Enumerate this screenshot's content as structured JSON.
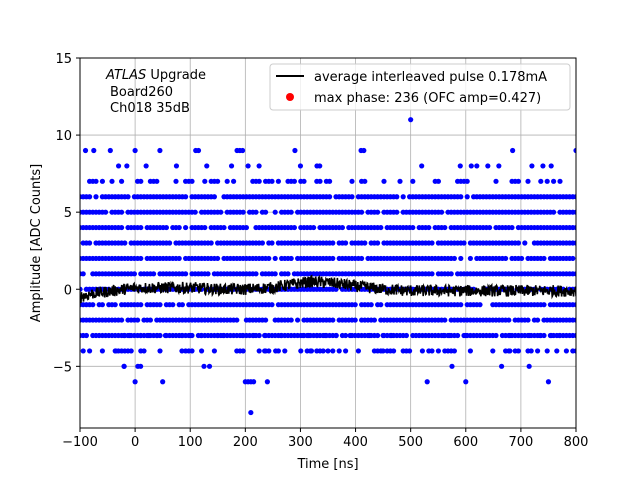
{
  "chart_data": {
    "type": "scatter",
    "xlabel": "Time [ns]",
    "ylabel": "Amplitude [ADC Counts]",
    "xlim": [
      -100,
      800
    ],
    "ylim": [
      -9,
      15
    ],
    "xticks": [
      -100,
      0,
      100,
      200,
      300,
      400,
      500,
      600,
      700,
      800
    ],
    "yticks": [
      -5,
      0,
      5,
      10,
      15
    ],
    "grid": true,
    "legend_position": "top-right",
    "annotation": {
      "line1_italic": "ATLAS",
      "line1_rest": " Upgrade",
      "line2": "Board260",
      "line3": "Ch018 35dB"
    },
    "series": [
      {
        "name": "average interleaved pulse 0.178mA",
        "kind": "line",
        "color": "#000000",
        "x": [
          -100,
          -90,
          -80,
          -60,
          -40,
          -20,
          0,
          50,
          100,
          150,
          200,
          250,
          280,
          300,
          320,
          340,
          360,
          380,
          400,
          450,
          500,
          550,
          600,
          650,
          700,
          750,
          800
        ],
        "y": [
          -0.5,
          -0.4,
          -0.3,
          -0.2,
          -0.1,
          0.0,
          0.1,
          0.1,
          0.1,
          0.0,
          0.0,
          0.1,
          0.3,
          0.4,
          0.5,
          0.45,
          0.4,
          0.3,
          0.2,
          0.0,
          -0.1,
          -0.1,
          -0.1,
          -0.1,
          -0.1,
          -0.1,
          -0.1
        ]
      },
      {
        "name": "max phase: 236 (OFC amp=0.427)",
        "kind": "marker",
        "color": "#ff0000",
        "x": [],
        "y": []
      },
      {
        "name": "",
        "kind": "samples",
        "color": "#0000ff",
        "dense_levels": [
          -3,
          -2,
          -1,
          0,
          1,
          2,
          3,
          4,
          5,
          6
        ],
        "medium_levels": [
          -4,
          7
        ],
        "x": [
          -90,
          -75,
          -45,
          -30,
          -15,
          0,
          20,
          45,
          75,
          110,
          115,
          130,
          175,
          185,
          190,
          195,
          205,
          225,
          290,
          300,
          330,
          335,
          410,
          415,
          500,
          520,
          590,
          610,
          620,
          640,
          660,
          685,
          720,
          740,
          755,
          800,
          -20,
          -10,
          10,
          25,
          40,
          55,
          85,
          100,
          120,
          150,
          160,
          195,
          215,
          235,
          265,
          305,
          315,
          330,
          345,
          365,
          390,
          425,
          450,
          465,
          560,
          570,
          600,
          680,
          715,
          735,
          755,
          770,
          -20,
          -35,
          0,
          5,
          10,
          50,
          85,
          125,
          135,
          235,
          255,
          320,
          350,
          450,
          530,
          575,
          600,
          665,
          680,
          715,
          750,
          -20,
          200,
          205,
          210,
          215,
          240,
          210
        ],
        "y": [
          9,
          9,
          9,
          8,
          8,
          9,
          8,
          9,
          8,
          9,
          9,
          8,
          8,
          9,
          9,
          9,
          8,
          8,
          9,
          8,
          8,
          8,
          9,
          9,
          11,
          8,
          8,
          8,
          8,
          8,
          8,
          9,
          8,
          8,
          8,
          9,
          -3,
          -3,
          -3,
          -3,
          -3,
          -3,
          -3,
          -3,
          -3,
          -3,
          -3,
          -3,
          -3,
          -3,
          -3,
          -3,
          -3,
          -3,
          -3,
          -3,
          -3,
          -3,
          -3,
          -3,
          -3,
          -3,
          -3,
          -3,
          -3,
          -3,
          -3,
          -3,
          -5,
          -4,
          -6,
          -5,
          -5,
          -6,
          -4,
          -5,
          -5,
          -4,
          -4,
          -4,
          -4,
          -4,
          -6,
          -5,
          -6,
          -5,
          -4,
          -5,
          -6,
          -5,
          -6,
          -6,
          -8,
          -6,
          -6,
          -6
        ]
      }
    ]
  }
}
